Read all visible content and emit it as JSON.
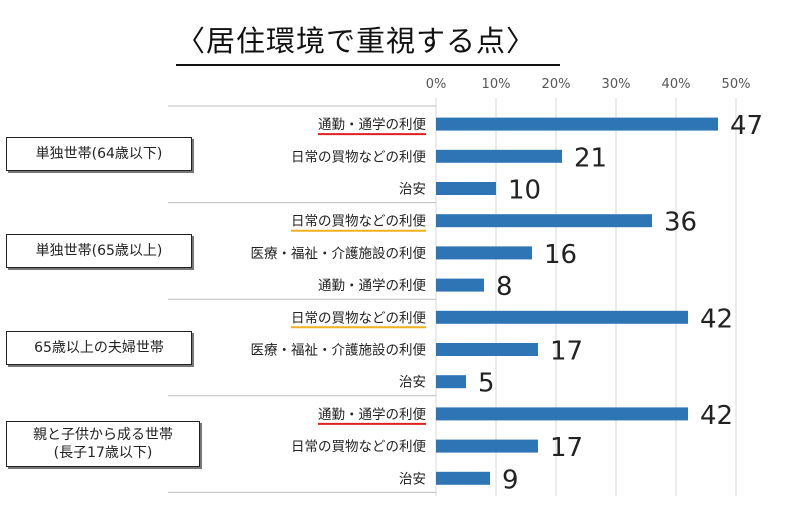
{
  "chart_data": {
    "type": "bar",
    "orientation": "horizontal",
    "title": "〈居住環境で重視する点〉",
    "x_ticks": [
      "0%",
      "10%",
      "20%",
      "30%",
      "40%",
      "50%"
    ],
    "xlim": [
      0,
      50
    ],
    "grid": true,
    "bar_color": "#2e75b6",
    "groups": [
      {
        "name": "単独世帯(64歳以下)",
        "items": [
          {
            "label": "通勤・通学の利便",
            "value": 47,
            "underline": "#e02020"
          },
          {
            "label": "日常の買物などの利便",
            "value": 21,
            "underline": null
          },
          {
            "label": "治安",
            "value": 10,
            "underline": null
          }
        ]
      },
      {
        "name": "単独世帯(65歳以上)",
        "items": [
          {
            "label": "日常の買物などの利便",
            "value": 36,
            "underline": "#f2b01e"
          },
          {
            "label": "医療・福祉・介護施設の利便",
            "value": 16,
            "underline": null
          },
          {
            "label": "通勤・通学の利便",
            "value": 8,
            "underline": null
          }
        ]
      },
      {
        "name": "65歳以上の夫婦世帯",
        "items": [
          {
            "label": "日常の買物などの利便",
            "value": 42,
            "underline": "#f2b01e"
          },
          {
            "label": "医療・福祉・介護施設の利便",
            "value": 17,
            "underline": null
          },
          {
            "label": "治安",
            "value": 5,
            "underline": null
          }
        ]
      },
      {
        "name": "親と子供から成る世帯\n(長子17歳以下)",
        "items": [
          {
            "label": "通勤・通学の利便",
            "value": 42,
            "underline": "#e02020"
          },
          {
            "label": "日常の買物などの利便",
            "value": 17,
            "underline": null
          },
          {
            "label": "治安",
            "value": 9,
            "underline": null
          }
        ]
      }
    ]
  }
}
